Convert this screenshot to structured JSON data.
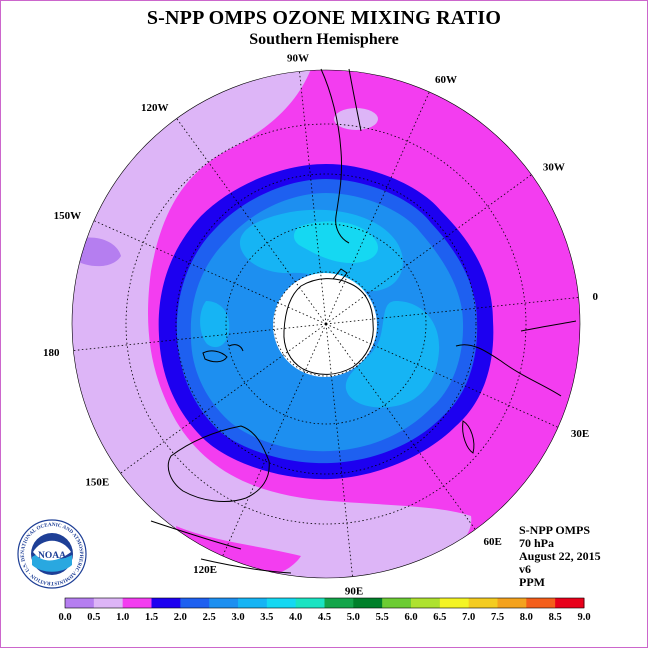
{
  "header": {
    "title": "S-NPP OMPS OZONE MIXING RATIO",
    "subtitle": "Southern Hemisphere"
  },
  "info": {
    "instrument": "S-NPP OMPS",
    "level": "70 hPa",
    "date": "August 22, 2015",
    "version": "v6",
    "units": "PPM"
  },
  "logo": {
    "text": "NOAA",
    "ring_text": "NATIONAL OCEANIC AND ATMOSPHERIC ADMINISTRATION · U.S. DEPARTMENT OF COMMERCE"
  },
  "map": {
    "projection": "south polar stereographic",
    "longitude_labels": [
      "0",
      "30E",
      "60E",
      "90E",
      "120E",
      "150E",
      "180",
      "150W",
      "120W",
      "90W",
      "60W",
      "30W"
    ],
    "colors": {
      "land_outline": "#000000",
      "grid": "#000000",
      "no_data": "#ffffff"
    }
  },
  "colorbar": {
    "labels": [
      "0.0",
      "0.5",
      "1.0",
      "1.5",
      "2.0",
      "2.5",
      "3.0",
      "3.5",
      "4.0",
      "4.5",
      "5.0",
      "5.5",
      "6.0",
      "6.5",
      "7.0",
      "7.5",
      "8.0",
      "8.5",
      "9.0"
    ],
    "colors": [
      "#b57ef0",
      "#ddb5f7",
      "#f33df0",
      "#1d00f0",
      "#1e60f0",
      "#1d8ff0",
      "#16b4f4",
      "#15d8f2",
      "#1ae3c2",
      "#13a54a",
      "#00802a",
      "#6ccc33",
      "#aee22f",
      "#f4f424",
      "#f4cc20",
      "#f4a21d",
      "#f45e1a",
      "#e8001a",
      "#8c5a3c"
    ]
  },
  "chart_data": {
    "type": "heatmap",
    "title": "S-NPP OMPS OZONE MIXING RATIO",
    "subtitle": "Southern Hemisphere",
    "units": "PPM",
    "pressure_level": "70 hPa",
    "date": "August 22, 2015",
    "contour_levels": [
      0.0,
      0.5,
      1.0,
      1.5,
      2.0,
      2.5,
      3.0,
      3.5,
      4.0,
      4.5,
      5.0,
      5.5,
      6.0,
      6.5,
      7.0,
      7.5,
      8.0,
      8.5,
      9.0
    ],
    "regions": [
      {
        "range": [
          0.5,
          1.0
        ],
        "location": "outer mid-latitudes, Pacific sector 120W to 150E"
      },
      {
        "range": [
          1.0,
          1.5
        ],
        "location": "broad ring surrounding the vortex; Atlantic and Indian Ocean sectors"
      },
      {
        "range": [
          1.5,
          2.0
        ],
        "location": "thin band at vortex edge"
      },
      {
        "range": [
          2.0,
          2.5
        ],
        "location": "vortex interior"
      },
      {
        "range": [
          2.5,
          3.0
        ],
        "location": "vortex interior"
      },
      {
        "range": [
          3.0,
          3.5
        ],
        "location": "cells near 60W-0 and 60E-90E inside the vortex"
      },
      {
        "range": "no data",
        "location": "polar cap"
      }
    ]
  }
}
